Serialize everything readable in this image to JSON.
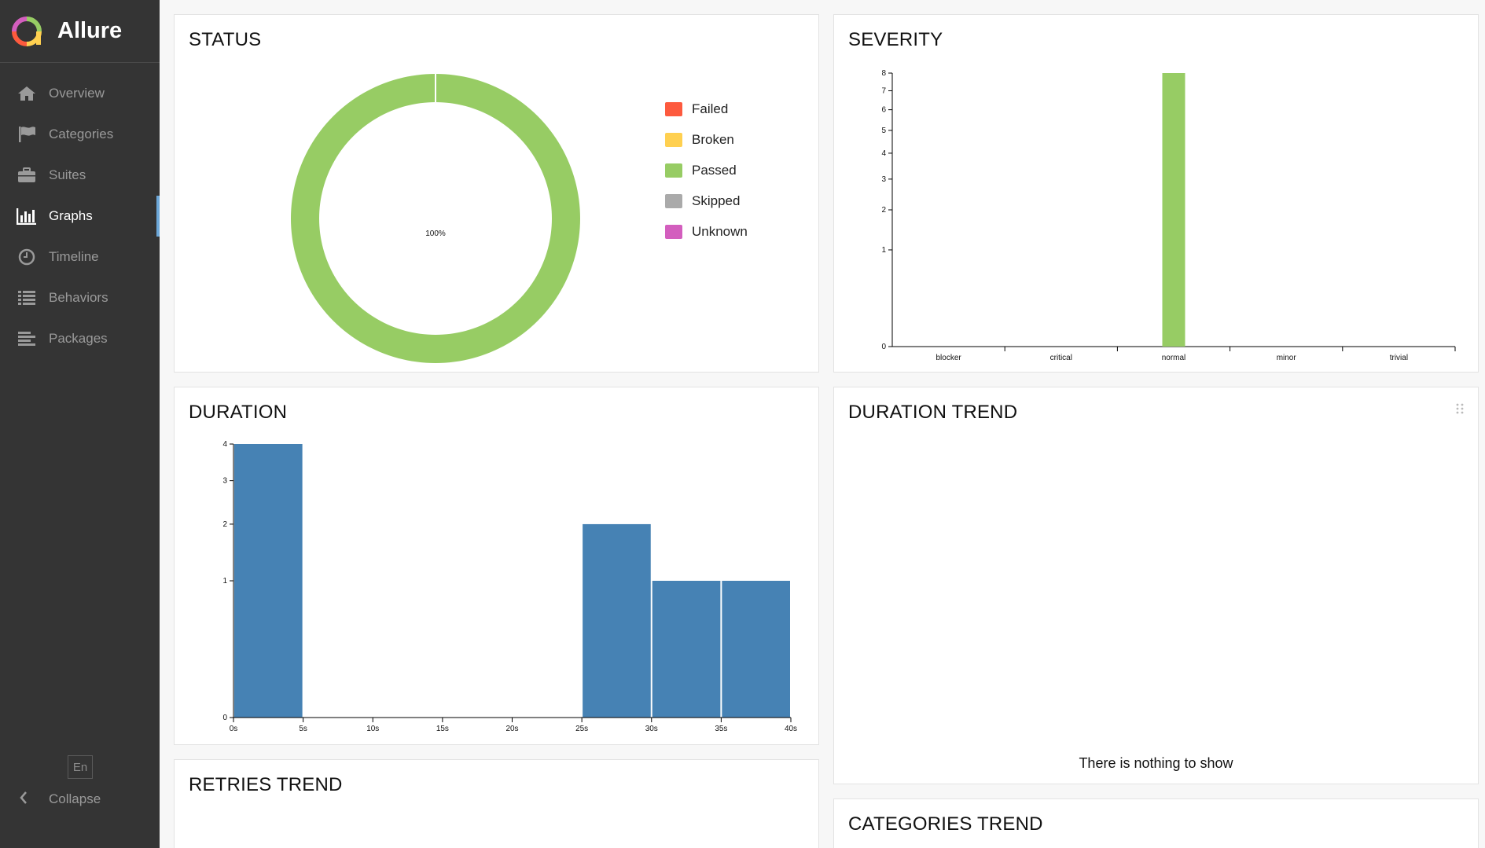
{
  "app": {
    "name": "Allure"
  },
  "sidebar": {
    "items": [
      {
        "label": "Overview",
        "icon": "home-icon",
        "active": false
      },
      {
        "label": "Categories",
        "icon": "flag-icon",
        "active": false
      },
      {
        "label": "Suites",
        "icon": "briefcase-icon",
        "active": false
      },
      {
        "label": "Graphs",
        "icon": "bar-chart-icon",
        "active": true
      },
      {
        "label": "Timeline",
        "icon": "clock-icon",
        "active": false
      },
      {
        "label": "Behaviors",
        "icon": "list-icon",
        "active": false
      },
      {
        "label": "Packages",
        "icon": "align-left-icon",
        "active": false
      }
    ],
    "language": "En",
    "collapse_label": "Collapse",
    "accent": "#6da8d9"
  },
  "widgets": {
    "status": {
      "title": "STATUS",
      "center_text": "100%",
      "legend": [
        {
          "label": "Failed",
          "color": "#fd5a3e"
        },
        {
          "label": "Broken",
          "color": "#ffd050"
        },
        {
          "label": "Passed",
          "color": "#97cc64"
        },
        {
          "label": "Skipped",
          "color": "#aaaaaa"
        },
        {
          "label": "Unknown",
          "color": "#d35ebe"
        }
      ]
    },
    "severity": {
      "title": "SEVERITY"
    },
    "duration": {
      "title": "DURATION"
    },
    "duration_trend": {
      "title": "DURATION TREND",
      "empty_message": "There is nothing to show"
    },
    "retries_trend": {
      "title": "RETRIES TREND"
    },
    "categories_trend": {
      "title": "CATEGORIES TREND"
    }
  },
  "chart_data": [
    {
      "id": "status",
      "type": "pie",
      "title": "STATUS",
      "categories": [
        "Failed",
        "Broken",
        "Passed",
        "Skipped",
        "Unknown"
      ],
      "values": [
        0,
        0,
        1,
        0,
        0
      ],
      "colors": [
        "#fd5a3e",
        "#ffd050",
        "#97cc64",
        "#aaaaaa",
        "#d35ebe"
      ],
      "center_label": "100%"
    },
    {
      "id": "severity",
      "type": "bar",
      "title": "SEVERITY",
      "categories": [
        "blocker",
        "critical",
        "normal",
        "minor",
        "trivial"
      ],
      "values": [
        0,
        0,
        8,
        0,
        0
      ],
      "bar_color": "#97cc64",
      "y_ticks": [
        0,
        1,
        2,
        3,
        4,
        5,
        6,
        7,
        8
      ],
      "ylim": [
        0,
        8
      ],
      "scale": "sqrt"
    },
    {
      "id": "duration",
      "type": "bar",
      "title": "DURATION",
      "bins": [
        {
          "x0": 0,
          "x1": 5,
          "value": 4
        },
        {
          "x0": 5,
          "x1": 10,
          "value": 0
        },
        {
          "x0": 10,
          "x1": 15,
          "value": 0
        },
        {
          "x0": 15,
          "x1": 20,
          "value": 0
        },
        {
          "x0": 20,
          "x1": 25,
          "value": 0
        },
        {
          "x0": 25,
          "x1": 30,
          "value": 2
        },
        {
          "x0": 30,
          "x1": 35,
          "value": 1
        },
        {
          "x0": 35,
          "x1": 40,
          "value": 1
        }
      ],
      "x_ticks": [
        "0s",
        "5s",
        "10s",
        "15s",
        "20s",
        "25s",
        "30s",
        "35s",
        "40s"
      ],
      "y_ticks": [
        0,
        1,
        2,
        3,
        4
      ],
      "ylim": [
        0,
        4
      ],
      "bar_color": "#4682b4",
      "scale": "sqrt"
    }
  ]
}
